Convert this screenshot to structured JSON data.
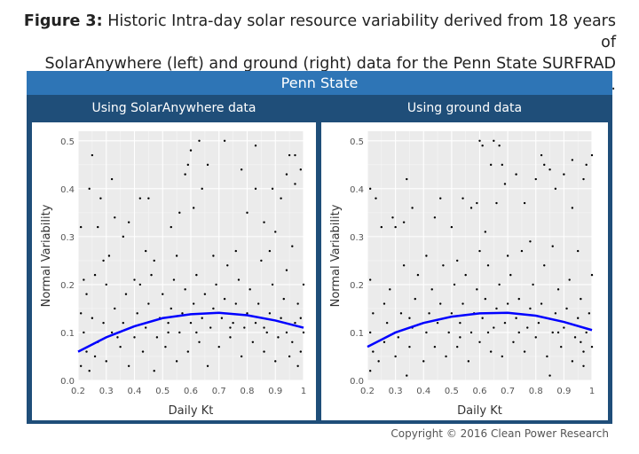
{
  "figure": {
    "label": "Figure 3:",
    "caption_line1": " Historic Intra-day solar resource variability derived from 18 years of",
    "caption_line2": "SolarAnywhere (left) and ground (right) data for the Penn State SURFRAD site."
  },
  "panel_title": "Penn State",
  "copyright": "Copyright © 2016 Clean Power Research",
  "colors": {
    "header": "#2e75b6",
    "subheader": "#1f4e79",
    "fit_line": "#0000ff",
    "points": "#000000",
    "plot_bg": "#ebebeb"
  },
  "chart_data": [
    {
      "type": "scatter",
      "subtitle": "Using SolarAnywhere data",
      "xlabel": "Daily Kt",
      "ylabel": "Normal Variability",
      "xlim": [
        0.2,
        1.0
      ],
      "ylim": [
        0,
        0.52
      ],
      "xticks": [
        "0.2",
        "0.3",
        "0.4",
        "0.5",
        "0.6",
        "0.7",
        "0.8",
        "0.9",
        "1"
      ],
      "yticks": [
        "0.0",
        "0.1",
        "0.2",
        "0.3",
        "0.4",
        "0.5"
      ],
      "grid": true,
      "fit_line": [
        [
          0.2,
          0.06
        ],
        [
          0.3,
          0.09
        ],
        [
          0.4,
          0.113
        ],
        [
          0.5,
          0.13
        ],
        [
          0.6,
          0.138
        ],
        [
          0.7,
          0.141
        ],
        [
          0.8,
          0.136
        ],
        [
          0.9,
          0.125
        ],
        [
          1.0,
          0.11
        ]
      ],
      "points": [
        [
          0.21,
          0.32
        ],
        [
          0.25,
          0.47
        ],
        [
          0.24,
          0.4
        ],
        [
          0.28,
          0.38
        ],
        [
          0.32,
          0.42
        ],
        [
          0.33,
          0.34
        ],
        [
          0.27,
          0.32
        ],
        [
          0.38,
          0.33
        ],
        [
          0.42,
          0.38
        ],
        [
          0.45,
          0.38
        ],
        [
          0.59,
          0.45
        ],
        [
          0.6,
          0.48
        ],
        [
          0.63,
          0.5
        ],
        [
          0.72,
          0.5
        ],
        [
          0.83,
          0.49
        ],
        [
          0.66,
          0.45
        ],
        [
          0.64,
          0.4
        ],
        [
          0.78,
          0.44
        ],
        [
          0.83,
          0.4
        ],
        [
          0.89,
          0.4
        ],
        [
          0.95,
          0.47
        ],
        [
          0.97,
          0.47
        ],
        [
          0.99,
          0.44
        ],
        [
          0.94,
          0.43
        ],
        [
          0.92,
          0.38
        ],
        [
          0.97,
          0.41
        ],
        [
          0.8,
          0.35
        ],
        [
          0.86,
          0.33
        ],
        [
          0.9,
          0.31
        ],
        [
          0.61,
          0.36
        ],
        [
          0.58,
          0.43
        ],
        [
          0.53,
          0.32
        ],
        [
          0.56,
          0.35
        ],
        [
          0.44,
          0.27
        ],
        [
          0.36,
          0.3
        ],
        [
          0.31,
          0.26
        ],
        [
          0.29,
          0.25
        ],
        [
          0.26,
          0.22
        ],
        [
          0.22,
          0.21
        ],
        [
          0.23,
          0.18
        ],
        [
          0.21,
          0.14
        ],
        [
          0.22,
          0.1
        ],
        [
          0.23,
          0.06
        ],
        [
          0.21,
          0.03
        ],
        [
          0.24,
          0.02
        ],
        [
          0.26,
          0.05
        ],
        [
          0.27,
          0.08
        ],
        [
          0.29,
          0.12
        ],
        [
          0.3,
          0.04
        ],
        [
          0.32,
          0.1
        ],
        [
          0.33,
          0.15
        ],
        [
          0.35,
          0.07
        ],
        [
          0.36,
          0.12
        ],
        [
          0.37,
          0.18
        ],
        [
          0.38,
          0.03
        ],
        [
          0.4,
          0.09
        ],
        [
          0.41,
          0.14
        ],
        [
          0.42,
          0.2
        ],
        [
          0.43,
          0.06
        ],
        [
          0.44,
          0.11
        ],
        [
          0.45,
          0.16
        ],
        [
          0.46,
          0.22
        ],
        [
          0.47,
          0.02
        ],
        [
          0.48,
          0.09
        ],
        [
          0.49,
          0.13
        ],
        [
          0.5,
          0.18
        ],
        [
          0.51,
          0.07
        ],
        [
          0.52,
          0.12
        ],
        [
          0.53,
          0.15
        ],
        [
          0.54,
          0.21
        ],
        [
          0.55,
          0.04
        ],
        [
          0.56,
          0.1
        ],
        [
          0.57,
          0.14
        ],
        [
          0.58,
          0.19
        ],
        [
          0.59,
          0.06
        ],
        [
          0.6,
          0.12
        ],
        [
          0.61,
          0.16
        ],
        [
          0.62,
          0.22
        ],
        [
          0.63,
          0.08
        ],
        [
          0.64,
          0.13
        ],
        [
          0.65,
          0.18
        ],
        [
          0.66,
          0.03
        ],
        [
          0.67,
          0.11
        ],
        [
          0.68,
          0.15
        ],
        [
          0.69,
          0.2
        ],
        [
          0.7,
          0.07
        ],
        [
          0.71,
          0.13
        ],
        [
          0.72,
          0.17
        ],
        [
          0.73,
          0.24
        ],
        [
          0.74,
          0.09
        ],
        [
          0.75,
          0.12
        ],
        [
          0.76,
          0.16
        ],
        [
          0.77,
          0.21
        ],
        [
          0.78,
          0.05
        ],
        [
          0.79,
          0.11
        ],
        [
          0.8,
          0.14
        ],
        [
          0.81,
          0.19
        ],
        [
          0.82,
          0.08
        ],
        [
          0.83,
          0.12
        ],
        [
          0.84,
          0.16
        ],
        [
          0.85,
          0.25
        ],
        [
          0.86,
          0.06
        ],
        [
          0.87,
          0.1
        ],
        [
          0.88,
          0.14
        ],
        [
          0.89,
          0.2
        ],
        [
          0.9,
          0.04
        ],
        [
          0.91,
          0.09
        ],
        [
          0.92,
          0.13
        ],
        [
          0.93,
          0.17
        ],
        [
          0.94,
          0.23
        ],
        [
          0.95,
          0.05
        ],
        [
          0.96,
          0.08
        ],
        [
          0.97,
          0.12
        ],
        [
          0.98,
          0.16
        ],
        [
          0.99,
          0.06
        ],
        [
          1.0,
          0.1
        ],
        [
          1.0,
          0.2
        ],
        [
          0.98,
          0.03
        ],
        [
          0.96,
          0.28
        ],
        [
          0.88,
          0.27
        ],
        [
          0.76,
          0.27
        ],
        [
          0.68,
          0.26
        ],
        [
          0.55,
          0.26
        ],
        [
          0.47,
          0.25
        ],
        [
          0.4,
          0.21
        ],
        [
          0.3,
          0.2
        ],
        [
          0.25,
          0.13
        ],
        [
          0.34,
          0.09
        ],
        [
          0.52,
          0.1
        ],
        [
          0.62,
          0.1
        ],
        [
          0.74,
          0.11
        ],
        [
          0.86,
          0.11
        ],
        [
          0.94,
          0.1
        ],
        [
          0.99,
          0.13
        ]
      ]
    },
    {
      "type": "scatter",
      "subtitle": "Using ground data",
      "xlabel": "Daily Kt",
      "ylabel": "Normal Variability",
      "xlim": [
        0.2,
        1.0
      ],
      "ylim": [
        0,
        0.52
      ],
      "xticks": [
        "0.2",
        "0.3",
        "0.4",
        "0.5",
        "0.6",
        "0.7",
        "0.8",
        "0.9",
        "1"
      ],
      "yticks": [
        "0.0",
        "0.1",
        "0.2",
        "0.3",
        "0.4",
        "0.5"
      ],
      "grid": true,
      "fit_line": [
        [
          0.2,
          0.07
        ],
        [
          0.3,
          0.1
        ],
        [
          0.4,
          0.12
        ],
        [
          0.5,
          0.133
        ],
        [
          0.6,
          0.14
        ],
        [
          0.7,
          0.141
        ],
        [
          0.8,
          0.135
        ],
        [
          0.9,
          0.122
        ],
        [
          1.0,
          0.105
        ]
      ],
      "points": [
        [
          0.21,
          0.4
        ],
        [
          0.23,
          0.38
        ],
        [
          0.25,
          0.32
        ],
        [
          0.29,
          0.34
        ],
        [
          0.3,
          0.32
        ],
        [
          0.34,
          0.42
        ],
        [
          0.36,
          0.36
        ],
        [
          0.33,
          0.33
        ],
        [
          0.46,
          0.38
        ],
        [
          0.54,
          0.38
        ],
        [
          0.6,
          0.5
        ],
        [
          0.61,
          0.49
        ],
        [
          0.65,
          0.5
        ],
        [
          0.67,
          0.49
        ],
        [
          0.64,
          0.45
        ],
        [
          0.68,
          0.45
        ],
        [
          0.73,
          0.43
        ],
        [
          0.82,
          0.47
        ],
        [
          0.83,
          0.45
        ],
        [
          0.85,
          0.44
        ],
        [
          0.93,
          0.46
        ],
        [
          0.98,
          0.45
        ],
        [
          1.0,
          0.47
        ],
        [
          0.97,
          0.42
        ],
        [
          0.9,
          0.43
        ],
        [
          0.8,
          0.42
        ],
        [
          0.69,
          0.41
        ],
        [
          0.59,
          0.37
        ],
        [
          0.66,
          0.37
        ],
        [
          0.57,
          0.36
        ],
        [
          0.44,
          0.34
        ],
        [
          0.5,
          0.32
        ],
        [
          0.62,
          0.31
        ],
        [
          0.76,
          0.37
        ],
        [
          0.87,
          0.4
        ],
        [
          0.93,
          0.36
        ],
        [
          0.21,
          0.21
        ],
        [
          0.22,
          0.14
        ],
        [
          0.21,
          0.1
        ],
        [
          0.22,
          0.06
        ],
        [
          0.21,
          0.02
        ],
        [
          0.24,
          0.04
        ],
        [
          0.26,
          0.08
        ],
        [
          0.27,
          0.12
        ],
        [
          0.28,
          0.19
        ],
        [
          0.3,
          0.05
        ],
        [
          0.31,
          0.09
        ],
        [
          0.32,
          0.14
        ],
        [
          0.34,
          0.01
        ],
        [
          0.35,
          0.07
        ],
        [
          0.36,
          0.11
        ],
        [
          0.37,
          0.17
        ],
        [
          0.38,
          0.22
        ],
        [
          0.4,
          0.04
        ],
        [
          0.41,
          0.1
        ],
        [
          0.42,
          0.14
        ],
        [
          0.43,
          0.19
        ],
        [
          0.44,
          0.07
        ],
        [
          0.45,
          0.12
        ],
        [
          0.46,
          0.16
        ],
        [
          0.47,
          0.24
        ],
        [
          0.48,
          0.05
        ],
        [
          0.49,
          0.1
        ],
        [
          0.5,
          0.14
        ],
        [
          0.51,
          0.2
        ],
        [
          0.52,
          0.07
        ],
        [
          0.53,
          0.12
        ],
        [
          0.54,
          0.16
        ],
        [
          0.55,
          0.22
        ],
        [
          0.56,
          0.04
        ],
        [
          0.57,
          0.1
        ],
        [
          0.58,
          0.14
        ],
        [
          0.59,
          0.19
        ],
        [
          0.6,
          0.08
        ],
        [
          0.61,
          0.13
        ],
        [
          0.62,
          0.17
        ],
        [
          0.63,
          0.24
        ],
        [
          0.64,
          0.06
        ],
        [
          0.65,
          0.11
        ],
        [
          0.66,
          0.15
        ],
        [
          0.67,
          0.2
        ],
        [
          0.68,
          0.05
        ],
        [
          0.69,
          0.12
        ],
        [
          0.7,
          0.16
        ],
        [
          0.71,
          0.22
        ],
        [
          0.72,
          0.08
        ],
        [
          0.73,
          0.13
        ],
        [
          0.74,
          0.17
        ],
        [
          0.75,
          0.27
        ],
        [
          0.76,
          0.06
        ],
        [
          0.77,
          0.11
        ],
        [
          0.78,
          0.15
        ],
        [
          0.79,
          0.2
        ],
        [
          0.8,
          0.09
        ],
        [
          0.81,
          0.12
        ],
        [
          0.82,
          0.16
        ],
        [
          0.83,
          0.24
        ],
        [
          0.84,
          0.05
        ],
        [
          0.85,
          0.01
        ],
        [
          0.86,
          0.1
        ],
        [
          0.87,
          0.14
        ],
        [
          0.88,
          0.19
        ],
        [
          0.89,
          0.07
        ],
        [
          0.9,
          0.11
        ],
        [
          0.91,
          0.15
        ],
        [
          0.92,
          0.21
        ],
        [
          0.93,
          0.04
        ],
        [
          0.94,
          0.09
        ],
        [
          0.95,
          0.13
        ],
        [
          0.96,
          0.17
        ],
        [
          0.97,
          0.06
        ],
        [
          0.98,
          0.1
        ],
        [
          0.99,
          0.14
        ],
        [
          1.0,
          0.07
        ],
        [
          1.0,
          0.22
        ],
        [
          0.97,
          0.03
        ],
        [
          0.95,
          0.27
        ],
        [
          0.86,
          0.28
        ],
        [
          0.78,
          0.29
        ],
        [
          0.7,
          0.26
        ],
        [
          0.6,
          0.27
        ],
        [
          0.52,
          0.25
        ],
        [
          0.41,
          0.26
        ],
        [
          0.33,
          0.24
        ],
        [
          0.26,
          0.16
        ],
        [
          0.35,
          0.13
        ],
        [
          0.53,
          0.09
        ],
        [
          0.63,
          0.1
        ],
        [
          0.74,
          0.1
        ],
        [
          0.88,
          0.1
        ],
        [
          0.96,
          0.08
        ]
      ]
    }
  ]
}
